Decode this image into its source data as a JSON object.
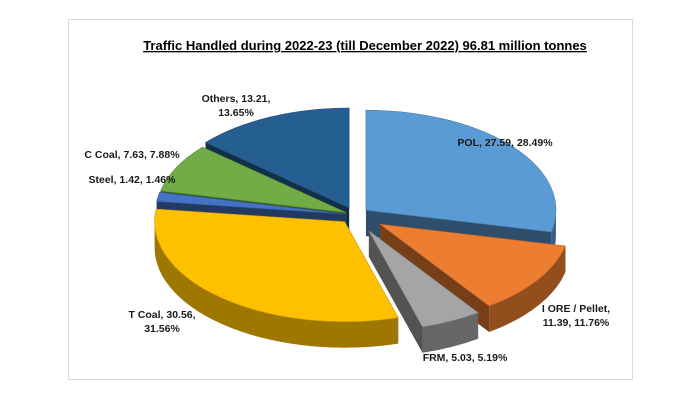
{
  "chart_data": {
    "type": "pie",
    "style": "3d-exploded",
    "title": "Traffic Handled during 2022-23 (till December 2022) 96.81 million tonnes",
    "slices": [
      {
        "name": "POL",
        "value": 27.59,
        "percent": 28.49,
        "color": "#5b9bd5",
        "label_lines": [
          "POL, 27.59, 28.49%"
        ]
      },
      {
        "name": "I ORE / Pellet",
        "value": 11.39,
        "percent": 11.76,
        "color": "#ed7d31",
        "label_lines": [
          "I ORE / Pellet,",
          "11.39, 11.76%"
        ]
      },
      {
        "name": "FRM",
        "value": 5.03,
        "percent": 5.19,
        "color": "#a5a5a5",
        "label_lines": [
          "FRM, 5.03, 5.19%"
        ]
      },
      {
        "name": "T Coal",
        "value": 30.56,
        "percent": 31.56,
        "color": "#ffc000",
        "label_lines": [
          "T Coal, 30.56,",
          "31.56%"
        ]
      },
      {
        "name": "Steel",
        "value": 1.42,
        "percent": 1.46,
        "color": "#4472c4",
        "label_lines": [
          "Steel, 1.42, 1.46%"
        ]
      },
      {
        "name": "C Coal",
        "value": 7.63,
        "percent": 7.88,
        "color": "#70ad47",
        "label_lines": [
          "C Coal, 7.63, 7.88%"
        ]
      },
      {
        "name": "Others",
        "value": 13.21,
        "percent": 13.65,
        "color": "#255e91",
        "label_lines": [
          "Others, 13.21,",
          "13.65%"
        ]
      }
    ]
  }
}
